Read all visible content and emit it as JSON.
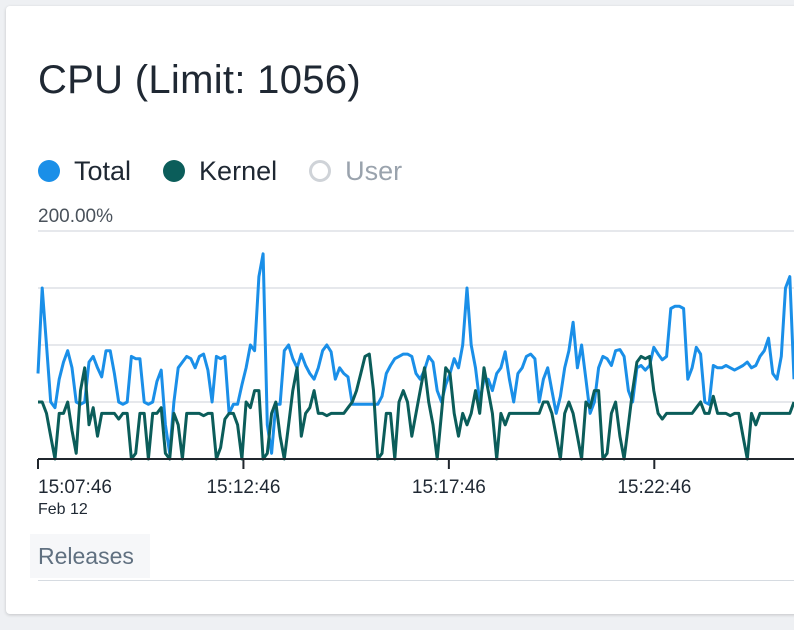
{
  "panel": {
    "title": "CPU (Limit: 1056)",
    "releases_label": "Releases"
  },
  "legend": [
    {
      "label": "Total",
      "color": "#1a8fe8",
      "active": true
    },
    {
      "label": "Kernel",
      "color": "#0b5d5a",
      "active": true
    },
    {
      "label": "User",
      "color": "#cfd3d8",
      "active": false
    }
  ],
  "colors": {
    "total": "#1a8fe8",
    "kernel": "#0b5d5a",
    "grid": "#dde1e6",
    "axis": "#20262d",
    "text": "#1f2833",
    "muted": "#9aa3ad"
  },
  "chart_data": {
    "type": "line",
    "y_max_label": "200.00%",
    "ylim": [
      0,
      200
    ],
    "grid": true,
    "legend_position": "top-left",
    "x_ticks": [
      "15:07:46",
      "15:12:46",
      "15:17:46",
      "15:22:46"
    ],
    "x_sublabel": "Feb 12",
    "series": [
      {
        "name": "Total",
        "values": [
          75,
          150,
          100,
          50,
          45,
          70,
          85,
          95,
          80,
          50,
          48,
          50,
          85,
          90,
          80,
          72,
          95,
          95,
          75,
          50,
          48,
          50,
          90,
          88,
          88,
          50,
          48,
          50,
          68,
          78,
          30,
          5,
          50,
          80,
          85,
          90,
          88,
          80,
          90,
          92,
          78,
          50,
          90,
          88,
          90,
          40,
          48,
          48,
          65,
          80,
          100,
          95,
          160,
          180,
          30,
          5,
          48,
          48,
          95,
          100,
          88,
          80,
          92,
          82,
          75,
          70,
          80,
          95,
          100,
          94,
          70,
          80,
          75,
          72,
          48,
          48,
          48,
          48,
          48,
          48,
          48,
          55,
          75,
          82,
          88,
          90,
          92,
          92,
          90,
          75,
          70,
          78,
          90,
          85,
          60,
          50,
          65,
          75,
          88,
          80,
          100,
          150,
          100,
          80,
          50,
          70,
          70,
          60,
          75,
          80,
          94,
          70,
          50,
          75,
          80,
          90,
          92,
          88,
          50,
          70,
          80,
          60,
          40,
          55,
          80,
          95,
          120,
          80,
          100,
          70,
          40,
          50,
          80,
          90,
          88,
          82,
          95,
          96,
          90,
          60,
          50,
          80,
          82,
          78,
          82,
          98,
          92,
          87,
          90,
          132,
          134,
          134,
          132,
          70,
          80,
          98,
          92,
          50,
          48,
          82,
          80,
          80,
          82,
          80,
          78,
          80,
          82,
          85,
          80,
          82,
          90,
          95,
          106,
          75,
          70,
          90,
          150,
          160,
          70
        ]
      },
      {
        "name": "Kernel",
        "values": [
          50,
          50,
          40,
          20,
          0,
          40,
          40,
          50,
          25,
          5,
          60,
          80,
          30,
          45,
          20,
          40,
          40,
          40,
          40,
          35,
          40,
          40,
          0,
          5,
          40,
          40,
          0,
          40,
          40,
          45,
          5,
          0,
          40,
          30,
          0,
          40,
          40,
          40,
          40,
          38,
          40,
          40,
          0,
          10,
          35,
          40,
          40,
          30,
          0,
          50,
          45,
          60,
          60,
          0,
          5,
          40,
          50,
          20,
          0,
          30,
          60,
          80,
          20,
          40,
          45,
          60,
          40,
          40,
          38,
          40,
          40,
          40,
          40,
          45,
          50,
          60,
          75,
          90,
          92,
          60,
          0,
          5,
          40,
          40,
          0,
          50,
          60,
          50,
          20,
          40,
          60,
          80,
          50,
          30,
          0,
          40,
          80,
          75,
          40,
          20,
          40,
          30,
          40,
          60,
          40,
          80,
          60,
          40,
          0,
          40,
          30,
          40,
          40,
          40,
          40,
          40,
          40,
          40,
          40,
          50,
          50,
          40,
          20,
          0,
          40,
          50,
          40,
          20,
          0,
          50,
          45,
          60,
          60,
          0,
          5,
          40,
          50,
          20,
          0,
          30,
          60,
          85,
          90,
          88,
          90,
          60,
          40,
          35,
          40,
          40,
          40,
          40,
          40,
          40,
          40,
          45,
          50,
          40,
          40,
          55,
          40,
          40,
          40,
          38,
          40,
          40,
          20,
          0,
          40,
          30,
          40,
          40,
          40,
          40,
          40,
          40,
          40,
          40,
          50,
          50,
          40,
          20,
          0,
          40,
          50,
          40,
          20,
          0,
          50,
          45,
          60,
          60,
          0,
          5,
          40,
          50,
          20,
          0,
          30,
          60,
          85,
          90,
          88,
          90,
          60,
          40,
          35,
          40,
          40,
          40,
          40,
          40,
          40,
          40,
          45,
          50,
          40,
          40,
          55,
          40,
          40,
          40,
          38,
          40,
          40,
          20,
          0,
          40,
          30,
          40,
          40,
          40,
          40,
          40,
          40,
          40,
          40,
          50,
          50,
          40,
          20,
          0,
          40,
          50,
          40,
          20,
          0,
          50,
          45,
          60,
          60,
          0,
          5,
          40,
          50,
          20,
          0,
          30,
          60,
          85,
          90,
          88,
          90,
          60,
          40,
          35,
          40,
          40,
          40,
          40,
          40,
          40,
          40,
          45,
          50,
          40,
          40,
          55,
          40,
          40,
          40,
          38,
          40,
          40,
          20,
          0,
          40,
          30,
          40,
          40,
          40,
          40,
          40,
          40,
          40,
          40,
          50,
          50,
          40,
          20,
          0,
          40,
          50,
          40,
          20,
          0,
          50,
          45,
          60,
          60,
          0,
          5,
          40,
          50,
          20,
          0,
          30,
          60,
          85,
          90,
          88,
          90,
          60,
          40,
          35,
          40,
          40,
          40,
          40,
          40,
          40,
          40,
          45,
          50,
          40,
          40,
          55,
          40,
          40,
          40,
          38,
          40,
          40,
          20,
          0,
          40,
          30,
          40,
          40,
          40,
          40,
          40,
          40,
          40,
          40,
          50,
          50,
          40,
          20,
          0,
          40,
          50,
          40,
          20,
          0,
          50,
          45,
          60,
          60,
          0,
          5,
          40,
          50,
          20,
          0,
          30,
          60,
          85,
          90,
          88,
          90,
          60,
          40,
          35,
          40,
          40,
          40,
          40,
          40,
          40,
          40,
          45,
          50,
          40,
          40,
          55,
          40,
          40,
          40,
          38,
          40,
          40,
          20,
          0,
          40,
          30,
          40,
          40,
          40,
          40,
          40,
          40,
          40,
          40,
          50,
          50,
          40,
          20,
          0,
          40,
          50,
          40,
          20,
          0,
          50,
          45,
          60,
          60,
          0,
          5,
          40,
          50,
          20,
          0,
          30,
          60,
          85,
          90,
          88,
          90,
          60,
          40,
          35,
          40,
          40,
          40,
          40,
          40,
          40,
          40,
          45,
          50,
          40,
          40,
          55,
          40,
          40,
          40,
          38,
          40,
          40,
          20,
          0,
          40,
          30,
          40,
          40,
          40,
          40,
          40,
          40,
          40,
          40,
          50,
          50,
          40,
          20,
          0,
          40,
          50,
          40,
          20,
          0
        ]
      },
      {
        "name": "User",
        "values": []
      }
    ]
  }
}
